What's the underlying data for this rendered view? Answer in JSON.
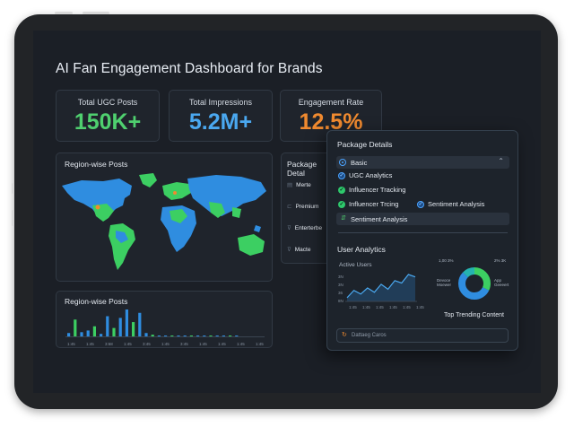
{
  "dashboard": {
    "title": "AI Fan Engagement Dashboard for Brands"
  },
  "stats": [
    {
      "label": "Total UGC Posts",
      "value": "150K+",
      "color": "#4fd06f"
    },
    {
      "label": "Total Impressions",
      "value": "5.2M+",
      "color": "#4aa8f0"
    },
    {
      "label": "Engagement Rate",
      "value": "12.5%",
      "color": "#f08a2f"
    }
  ],
  "map_panel": {
    "title": "Region-wise Posts"
  },
  "bar_panel": {
    "title": "Region-wise Posts",
    "x_labels": [
      "1:45",
      "1:45",
      "3:68",
      "1:45",
      "3:45",
      "1:45",
      "3:45",
      "1:45",
      "1:45",
      "1:45",
      "1:45"
    ],
    "chart_data": {
      "type": "bar",
      "title": "Region-wise Posts",
      "values": [
        4,
        20,
        5,
        7,
        12,
        3,
        24,
        10,
        22,
        32,
        17,
        28,
        4,
        2,
        1,
        1,
        1,
        1,
        1,
        1,
        1,
        1,
        1,
        1,
        1,
        1,
        1
      ]
    }
  },
  "package_under": {
    "title": "Package Detal",
    "items": [
      "Merte",
      "Premium",
      "Enterterbe",
      "Macte"
    ]
  },
  "package_details": {
    "title": "Package Details",
    "selected": "Basic",
    "options": [
      "UGC Analytics",
      "Influencer Tracking",
      "Influencer Trcing",
      "Sentiment Analysis",
      "Sentiment Analysis"
    ]
  },
  "user_analytics": {
    "title": "User Analytics",
    "line_label": "Active Users",
    "x_labels": [
      "1:45",
      "1:45",
      "1:45",
      "1:45",
      "1:45",
      "1:45"
    ],
    "y_labels": [
      "3N",
      "3N",
      "36",
      "8N"
    ],
    "chart_data": {
      "type": "line",
      "title": "Active Users",
      "values": [
        6,
        18,
        12,
        22,
        15,
        28,
        20,
        34,
        30,
        44,
        40
      ]
    },
    "donut": {
      "labels": [
        "1,00 3%",
        "2% 3K",
        "Devoce Moewer",
        "App Geeeert"
      ],
      "chart_data": {
        "type": "pie",
        "slices": [
          {
            "name": "Green",
            "value": 32,
            "color": "#3ccf62"
          },
          {
            "name": "Blue",
            "value": 55,
            "color": "#2f8de0"
          },
          {
            "name": "Teal",
            "value": 13,
            "color": "#25b3b0"
          }
        ]
      }
    },
    "trending_title": "Top Trending Content",
    "search_placeholder": "Dattaeg Caros"
  }
}
